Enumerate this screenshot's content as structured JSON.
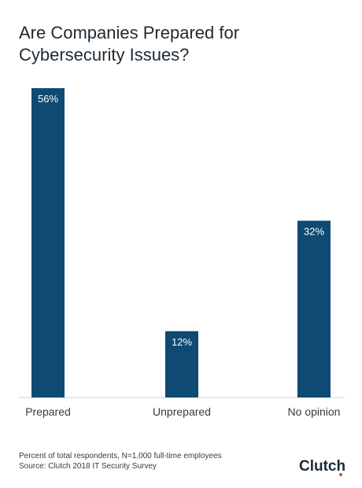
{
  "title": "Are Companies Prepared for Cybersecurity Issues?",
  "footer": {
    "note": "Percent of total respondents, N=1,000 full-time employees",
    "source": "Source: Clutch 2018 IT Security Survey",
    "brand": "Clutch"
  },
  "colors": {
    "bar": "#0e4a73",
    "brand_accent": "#e8472f"
  },
  "chart_data": {
    "type": "bar",
    "title": "Are Companies Prepared for Cybersecurity Issues?",
    "categories": [
      "Prepared",
      "Unprepared",
      "No opinion"
    ],
    "values": [
      56,
      12,
      32
    ],
    "labels": [
      "56%",
      "12%",
      "32%"
    ],
    "xlabel": "",
    "ylabel": "",
    "ylim": [
      0,
      56
    ],
    "grid": false,
    "legend": "none"
  }
}
